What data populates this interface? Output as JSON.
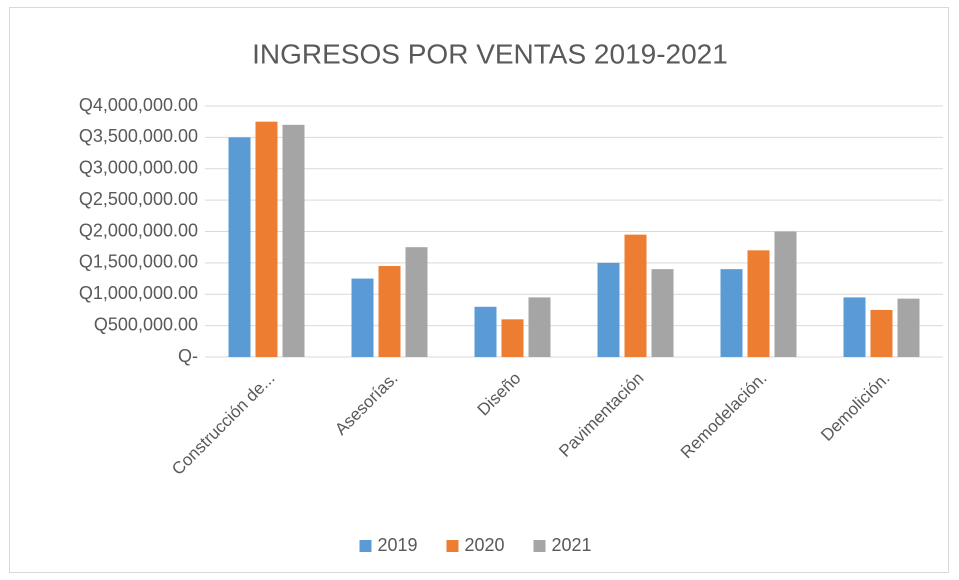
{
  "chart_data": {
    "type": "bar",
    "title": "INGRESOS POR VENTAS 2019-2021",
    "categories": [
      "Construcción de...",
      "Asesorías.",
      "Diseño",
      "Pavimentación",
      "Remodelación.",
      "Demolición."
    ],
    "series": [
      {
        "name": "2019",
        "color": "#5b9bd5",
        "values": [
          3500000,
          1250000,
          800000,
          1500000,
          1400000,
          950000
        ]
      },
      {
        "name": "2020",
        "color": "#ed7d31",
        "values": [
          3750000,
          1450000,
          600000,
          1950000,
          1700000,
          750000
        ]
      },
      {
        "name": "2021",
        "color": "#a5a5a5",
        "values": [
          3700000,
          1750000,
          950000,
          1400000,
          2000000,
          930000
        ]
      }
    ],
    "ylim": [
      0,
      4000000
    ],
    "yticks": [
      {
        "value": 0,
        "label": "Q-"
      },
      {
        "value": 500000,
        "label": "Q500,000.00"
      },
      {
        "value": 1000000,
        "label": "Q1,000,000.00"
      },
      {
        "value": 1500000,
        "label": "Q1,500,000.00"
      },
      {
        "value": 2000000,
        "label": "Q2,000,000.00"
      },
      {
        "value": 2500000,
        "label": "Q2,500,000.00"
      },
      {
        "value": 3000000,
        "label": "Q3,000,000.00"
      },
      {
        "value": 3500000,
        "label": "Q3,500,000.00"
      },
      {
        "value": 4000000,
        "label": "Q4,000,000.00"
      }
    ],
    "grid": true,
    "legend": "bottom"
  }
}
